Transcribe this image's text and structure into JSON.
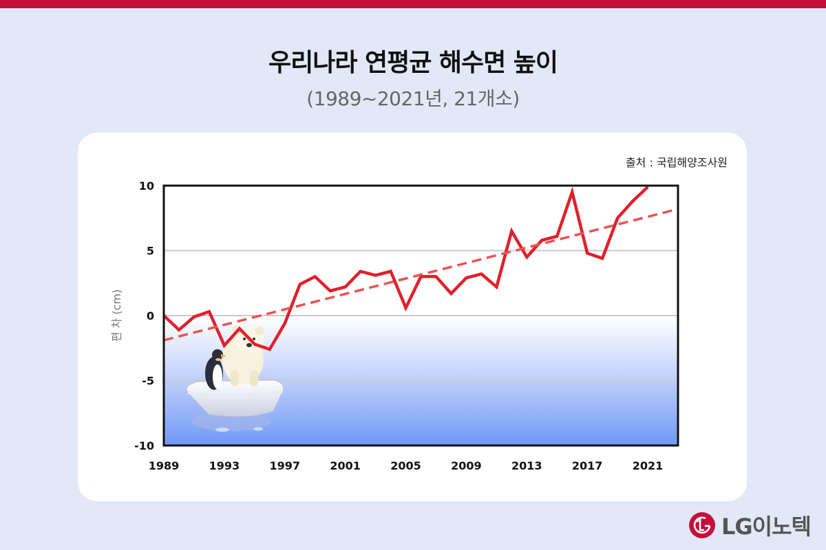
{
  "header": {
    "title": "우리나라 연평균 해수면 높이",
    "subtitle": "(1989~2021년, 21개소)"
  },
  "source": "출처 : 국립해양조사원",
  "brand": {
    "name": "LG이노텍",
    "color": "#c40f3d"
  },
  "colors": {
    "line": "#e0202c",
    "trend": "#f05050",
    "water": "#6f99f7"
  },
  "chart_data": {
    "type": "line",
    "title": "",
    "xlabel": "",
    "ylabel": "편 차 (cm)",
    "xlim": [
      1989,
      2023
    ],
    "ylim": [
      -10,
      10
    ],
    "x_ticks": [
      "1989",
      "1993",
      "1997",
      "2001",
      "2005",
      "2009",
      "2013",
      "2017",
      "2021"
    ],
    "y_ticks": [
      "10",
      "5",
      "0",
      "-5",
      "-10"
    ],
    "grid": true,
    "series": [
      {
        "style": "solid",
        "x": [
          1989,
          1990,
          1991,
          1992,
          1993,
          1994,
          1995,
          1996,
          1997,
          1998,
          1999,
          2000,
          2001,
          2002,
          2003,
          2004,
          2005,
          2006,
          2007,
          2008,
          2009,
          2010,
          2011,
          2012,
          2013,
          2014,
          2015,
          2016,
          2017,
          2018,
          2019,
          2020,
          2021
        ],
        "values": [
          0,
          -1.1,
          -0.1,
          0.3,
          -2.3,
          -1.0,
          -2.2,
          -2.6,
          -0.6,
          2.4,
          3.0,
          1.9,
          2.2,
          3.4,
          3.1,
          3.4,
          0.6,
          3.0,
          3.0,
          1.7,
          2.9,
          3.2,
          2.2,
          6.5,
          4.5,
          5.8,
          6.1,
          9.5,
          4.8,
          4.4,
          7.5,
          8.8,
          9.9
        ]
      },
      {
        "style": "dashed",
        "x": [
          1989,
          2023
        ],
        "values": [
          -1.9,
          8.2
        ]
      }
    ]
  }
}
